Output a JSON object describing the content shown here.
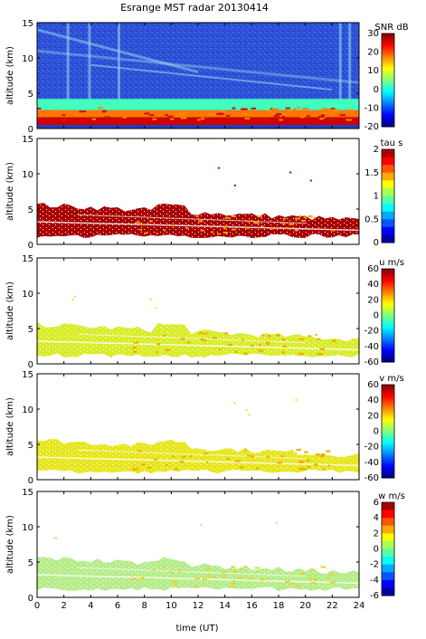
{
  "figure": {
    "title": "Esrange MST radar 20130414",
    "xlabel": "time (UT)",
    "ylabel": "altitude (km)"
  },
  "chart_data": [
    {
      "type": "heatmap",
      "panel": "SNR",
      "colorbar_label": "SNR dB",
      "xlim": [
        0,
        24
      ],
      "ylim": [
        0,
        15
      ],
      "x_ticks": [
        "0",
        "2",
        "4",
        "6",
        "8",
        "10",
        "12",
        "14",
        "16",
        "18",
        "20",
        "22",
        "24"
      ],
      "y_ticks": [
        "0",
        "5",
        "10",
        "15"
      ],
      "cbar_range": [
        -20,
        30
      ],
      "cbar_ticks": [
        "30",
        "20",
        "10",
        "0",
        "-10",
        "-20"
      ],
      "colormap": "jet",
      "background": "#2a4fd6",
      "layers": [
        {
          "alt": [
            0.5,
            1.6
          ],
          "value": 26,
          "description_color": "#e21a1a"
        },
        {
          "alt": [
            1.6,
            2.6
          ],
          "value": 18,
          "description_color": "#f7d20a"
        },
        {
          "alt": [
            2.6,
            4.2
          ],
          "value": 2,
          "description_color": "#7ee0e8"
        }
      ]
    },
    {
      "type": "heatmap",
      "panel": "tau",
      "colorbar_label": "tau s",
      "xlim": [
        0,
        24
      ],
      "ylim": [
        0,
        15
      ],
      "x_ticks": [
        "0",
        "2",
        "4",
        "6",
        "8",
        "10",
        "12",
        "14",
        "16",
        "18",
        "20",
        "22",
        "24"
      ],
      "y_ticks": [
        "0",
        "5",
        "10",
        "15"
      ],
      "cbar_range": [
        0,
        2
      ],
      "cbar_ticks": [
        "2",
        "1.5",
        "1",
        "0.5",
        "0"
      ],
      "colormap": "jet-stepped",
      "dominant_value": 2,
      "dominant_color": "#a80000"
    },
    {
      "type": "heatmap",
      "panel": "u",
      "colorbar_label": "u m/s",
      "xlim": [
        0,
        24
      ],
      "ylim": [
        0,
        15
      ],
      "x_ticks": [
        "0",
        "2",
        "4",
        "6",
        "8",
        "10",
        "12",
        "14",
        "16",
        "18",
        "20",
        "22",
        "24"
      ],
      "y_ticks": [
        "0",
        "5",
        "10",
        "15"
      ],
      "cbar_range": [
        -60,
        60
      ],
      "cbar_ticks": [
        "60",
        "40",
        "20",
        "0",
        "-20",
        "-40",
        "-60"
      ],
      "colormap": "jet",
      "dominant_value": 15,
      "dominant_color": "#d8ec2a"
    },
    {
      "type": "heatmap",
      "panel": "v",
      "colorbar_label": "v m/s",
      "xlim": [
        0,
        24
      ],
      "ylim": [
        0,
        15
      ],
      "x_ticks": [
        "0",
        "2",
        "4",
        "6",
        "8",
        "10",
        "12",
        "14",
        "16",
        "18",
        "20",
        "22",
        "24"
      ],
      "y_ticks": [
        "0",
        "5",
        "10",
        "15"
      ],
      "cbar_range": [
        -60,
        60
      ],
      "cbar_ticks": [
        "60",
        "40",
        "20",
        "0",
        "-20",
        "-40",
        "-60"
      ],
      "colormap": "jet",
      "dominant_value": 20,
      "dominant_color": "#e6e61e"
    },
    {
      "type": "heatmap",
      "panel": "w",
      "colorbar_label": "w m/s",
      "xlim": [
        0,
        24
      ],
      "ylim": [
        0,
        15
      ],
      "x_ticks": [
        "0",
        "2",
        "4",
        "6",
        "8",
        "10",
        "12",
        "14",
        "16",
        "18",
        "20",
        "22",
        "24"
      ],
      "y_ticks": [
        "0",
        "5",
        "10",
        "15"
      ],
      "cbar_range": [
        -6,
        6
      ],
      "cbar_ticks": [
        "6",
        "4",
        "2",
        "0",
        "-2",
        "-4",
        "-6"
      ],
      "colormap": "jet-stepped",
      "dominant_value": 0,
      "dominant_color": "#b6ec8a"
    }
  ]
}
